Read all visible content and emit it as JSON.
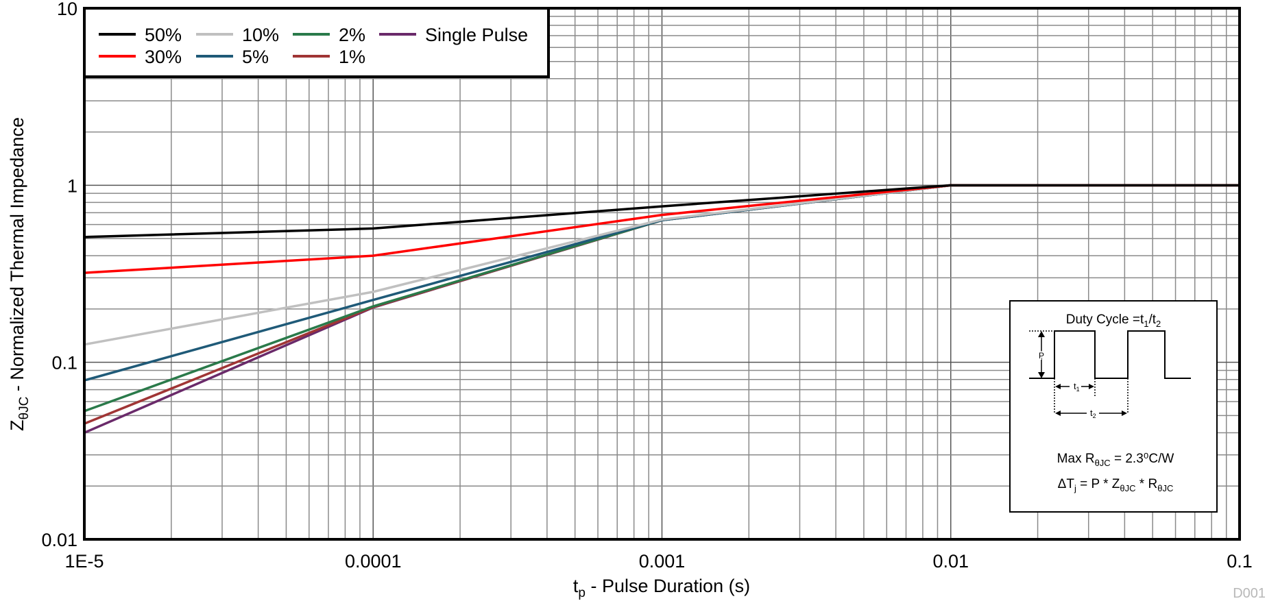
{
  "chart_data": {
    "type": "line",
    "x_scale": "log",
    "y_scale": "log",
    "grid": true,
    "legend_placement": "top-left",
    "xlim": [
      1e-05,
      0.1
    ],
    "ylim": [
      0.01,
      10
    ],
    "xlabel": {
      "main": "t",
      "sub": "p",
      "rest": " - Pulse Duration (s)"
    },
    "ylabel": {
      "main": "Z",
      "sub": "θJC",
      "rest": " - Normalized Thermal Impedance"
    },
    "x_ticks": [
      {
        "value": 1e-05,
        "label": "1E-5"
      },
      {
        "value": 0.0001,
        "label": "0.0001"
      },
      {
        "value": 0.001,
        "label": "0.001"
      },
      {
        "value": 0.01,
        "label": "0.01"
      },
      {
        "value": 0.1,
        "label": "0.1"
      }
    ],
    "y_ticks": [
      {
        "value": 0.01,
        "label": "0.01"
      },
      {
        "value": 0.1,
        "label": "0.1"
      },
      {
        "value": 1,
        "label": "1"
      },
      {
        "value": 10,
        "label": "10"
      }
    ],
    "x": [
      1e-05,
      0.0001,
      0.001,
      0.01,
      0.1
    ],
    "series": [
      {
        "name": "50%",
        "color": "#000000",
        "values": [
          0.51,
          0.57,
          0.76,
          1.0,
          1.0
        ]
      },
      {
        "name": "30%",
        "color": "#ff0000",
        "values": [
          0.32,
          0.4,
          0.68,
          1.0,
          1.0
        ]
      },
      {
        "name": "10%",
        "color": "#c0c0c0",
        "values": [
          0.126,
          0.25,
          0.64,
          1.0,
          1.0
        ]
      },
      {
        "name": "5%",
        "color": "#1f5a78",
        "values": [
          0.079,
          0.225,
          0.635,
          1.0,
          1.0
        ]
      },
      {
        "name": "2%",
        "color": "#2a7a4a",
        "values": [
          0.053,
          0.207,
          0.635,
          1.0,
          1.0
        ]
      },
      {
        "name": "1%",
        "color": "#a03535",
        "values": [
          0.045,
          0.205,
          0.635,
          1.0,
          1.0
        ]
      },
      {
        "name": "Single Pulse",
        "color": "#6a2a6a",
        "values": [
          0.04,
          0.204,
          0.635,
          1.0,
          1.0
        ]
      }
    ],
    "legend_order": [
      0,
      2,
      4,
      6,
      1,
      3,
      5
    ],
    "inset": {
      "duty_cycle": {
        "text": "Duty Cycle =t",
        "s1": "1",
        "mid": "/t",
        "s2": "2"
      },
      "p_label": "P",
      "t1": {
        "main": "t",
        "sub": "1"
      },
      "t2": {
        "main": "t",
        "sub": "2"
      },
      "max_r": {
        "pre": "Max R",
        "sub": "θJC",
        "post": " = 2.3⁰C/W"
      },
      "delta_t": {
        "pre": "ΔT",
        "sub1": "j",
        "mid1": " = P * Z",
        "sub2": "θJC",
        "mid2": " * R",
        "sub3": "θJC"
      }
    },
    "figure_id": "D001"
  }
}
